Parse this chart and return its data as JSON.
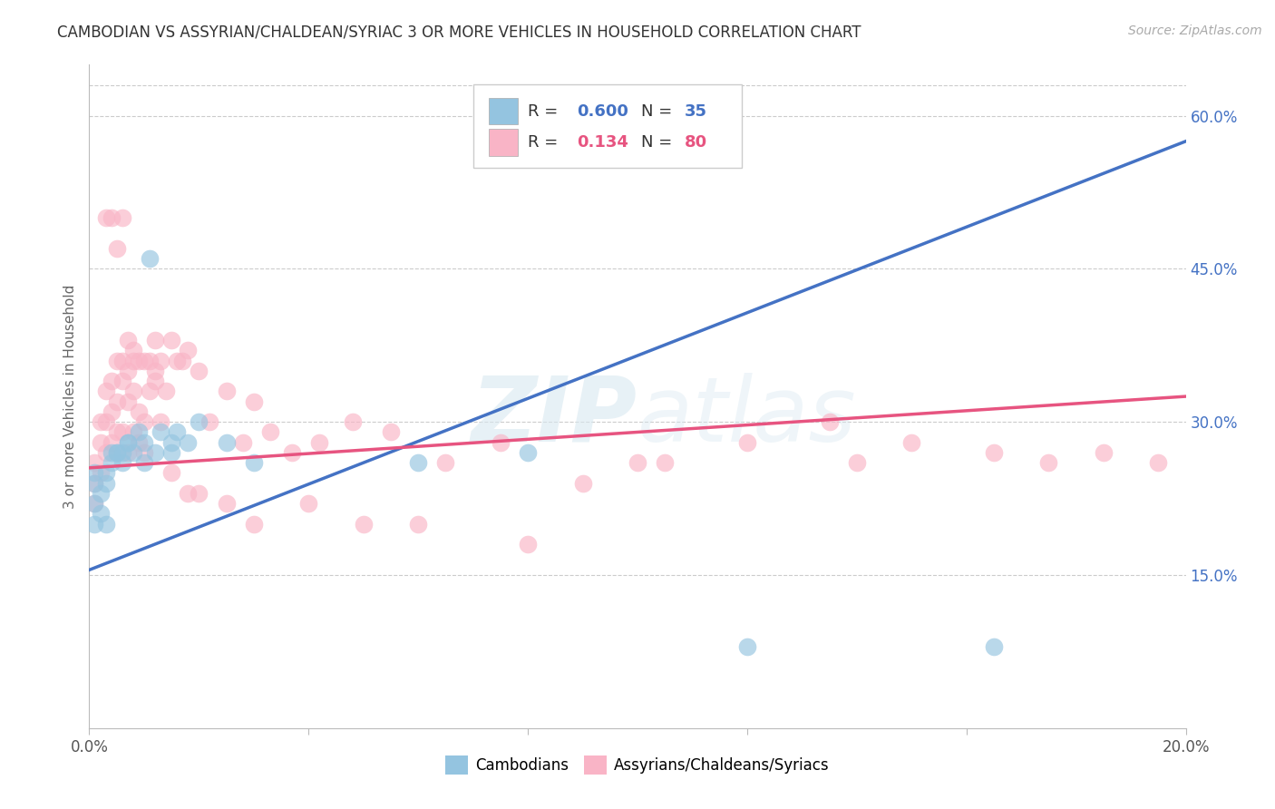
{
  "title": "CAMBODIAN VS ASSYRIAN/CHALDEAN/SYRIAC 3 OR MORE VEHICLES IN HOUSEHOLD CORRELATION CHART",
  "source": "Source: ZipAtlas.com",
  "ylabel_text": "3 or more Vehicles in Household",
  "x_min": 0.0,
  "x_max": 0.2,
  "y_min": 0.0,
  "y_max": 0.65,
  "x_ticks": [
    0.0,
    0.04,
    0.08,
    0.12,
    0.16,
    0.2
  ],
  "x_tick_labels": [
    "0.0%",
    "",
    "",
    "",
    "",
    "20.0%"
  ],
  "y_ticks_right": [
    0.15,
    0.3,
    0.45,
    0.6
  ],
  "y_tick_labels_right": [
    "15.0%",
    "30.0%",
    "45.0%",
    "60.0%"
  ],
  "cambodian_color": "#94c4e0",
  "assyrian_color": "#f9b4c6",
  "blue_line_color": "#4472c4",
  "pink_line_color": "#e75480",
  "watermark_color": "#e0e8f0",
  "legend_r_cambodian": "0.600",
  "legend_n_cambodian": "35",
  "legend_r_assyrian": "0.134",
  "legend_n_assyrian": "80",
  "blue_line_x0": 0.0,
  "blue_line_y0": 0.155,
  "blue_line_x1": 0.2,
  "blue_line_y1": 0.575,
  "pink_line_x0": 0.0,
  "pink_line_x1": 0.2,
  "pink_line_y0": 0.255,
  "pink_line_y1": 0.325,
  "cambodian_scatter_x": [
    0.001,
    0.001,
    0.001,
    0.001,
    0.002,
    0.002,
    0.003,
    0.003,
    0.004,
    0.005,
    0.006,
    0.007,
    0.008,
    0.01,
    0.011,
    0.012,
    0.013,
    0.015,
    0.016,
    0.018,
    0.02,
    0.025,
    0.03,
    0.06,
    0.08,
    0.12,
    0.165,
    0.003,
    0.004,
    0.005,
    0.006,
    0.007,
    0.009,
    0.01,
    0.015
  ],
  "cambodian_scatter_y": [
    0.25,
    0.24,
    0.22,
    0.2,
    0.23,
    0.21,
    0.25,
    0.2,
    0.27,
    0.27,
    0.26,
    0.28,
    0.27,
    0.26,
    0.46,
    0.27,
    0.29,
    0.28,
    0.29,
    0.28,
    0.3,
    0.28,
    0.26,
    0.26,
    0.27,
    0.08,
    0.08,
    0.24,
    0.26,
    0.27,
    0.27,
    0.28,
    0.29,
    0.28,
    0.27
  ],
  "assyrian_scatter_x": [
    0.001,
    0.001,
    0.001,
    0.002,
    0.002,
    0.002,
    0.003,
    0.003,
    0.003,
    0.004,
    0.004,
    0.004,
    0.005,
    0.005,
    0.005,
    0.006,
    0.006,
    0.006,
    0.007,
    0.007,
    0.007,
    0.008,
    0.008,
    0.008,
    0.009,
    0.009,
    0.01,
    0.01,
    0.011,
    0.011,
    0.012,
    0.012,
    0.013,
    0.013,
    0.014,
    0.015,
    0.016,
    0.017,
    0.018,
    0.02,
    0.022,
    0.025,
    0.028,
    0.03,
    0.033,
    0.037,
    0.042,
    0.048,
    0.055,
    0.065,
    0.075,
    0.09,
    0.105,
    0.12,
    0.135,
    0.15,
    0.165,
    0.175,
    0.185,
    0.195,
    0.003,
    0.004,
    0.005,
    0.006,
    0.007,
    0.008,
    0.009,
    0.01,
    0.012,
    0.015,
    0.018,
    0.02,
    0.025,
    0.03,
    0.04,
    0.05,
    0.06,
    0.08,
    0.1,
    0.14
  ],
  "assyrian_scatter_y": [
    0.24,
    0.22,
    0.26,
    0.28,
    0.3,
    0.25,
    0.3,
    0.33,
    0.27,
    0.31,
    0.34,
    0.28,
    0.32,
    0.36,
    0.29,
    0.34,
    0.36,
    0.29,
    0.35,
    0.32,
    0.27,
    0.29,
    0.33,
    0.36,
    0.28,
    0.31,
    0.27,
    0.3,
    0.33,
    0.36,
    0.35,
    0.38,
    0.36,
    0.3,
    0.33,
    0.38,
    0.36,
    0.36,
    0.37,
    0.35,
    0.3,
    0.33,
    0.28,
    0.32,
    0.29,
    0.27,
    0.28,
    0.3,
    0.29,
    0.26,
    0.28,
    0.24,
    0.26,
    0.28,
    0.3,
    0.28,
    0.27,
    0.26,
    0.27,
    0.26,
    0.5,
    0.5,
    0.47,
    0.5,
    0.38,
    0.37,
    0.36,
    0.36,
    0.34,
    0.25,
    0.23,
    0.23,
    0.22,
    0.2,
    0.22,
    0.2,
    0.2,
    0.18,
    0.26,
    0.26
  ]
}
